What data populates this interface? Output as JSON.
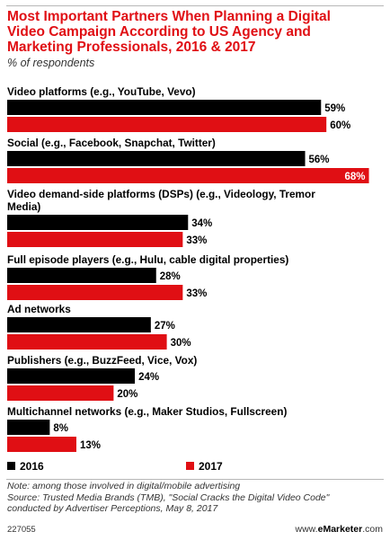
{
  "header": {
    "title": "Most Important Partners When Planning a Digital\nVideo Campaign According to US Agency and\nMarketing Professionals, 2016 & 2017",
    "subtitle": "% of respondents"
  },
  "chart_data": {
    "type": "bar",
    "orientation": "horizontal",
    "title": "Most Important Partners When Planning a Digital Video Campaign According to US Agency and Marketing Professionals, 2016 & 2017",
    "subtitle": "% of respondents",
    "unit": "%",
    "categories": [
      "Video platforms (e.g., YouTube, Vevo)",
      "Social (e.g., Facebook, Snapchat, Twitter)",
      "Video demand-side platforms (DSPs) (e.g., Videology, Tremor Media)",
      "Full episode players (e.g., Hulu, cable digital properties)",
      "Ad networks",
      "Publishers (e.g., BuzzFeed, Vice, Vox)",
      "Multichannel networks (e.g., Maker Studios, Fullscreen)"
    ],
    "series": [
      {
        "name": "2016",
        "color": "#000000",
        "values": [
          59,
          56,
          34,
          28,
          27,
          24,
          8
        ]
      },
      {
        "name": "2017",
        "color": "#e00f14",
        "values": [
          60,
          68,
          33,
          33,
          30,
          20,
          13
        ]
      }
    ],
    "value_labels": [
      [
        "59%",
        "56%",
        "34%",
        "28%",
        "27%",
        "24%",
        "8%"
      ],
      [
        "60%",
        "68%",
        "33%",
        "33%",
        "30%",
        "20%",
        "13%"
      ]
    ],
    "xlim": [
      0,
      68
    ],
    "grid": false,
    "legend_position": "bottom-left"
  },
  "footer": {
    "note": "Note: among those involved in digital/mobile advertising\nSource: Trusted Media Brands (TMB), \"Social Cracks the Digital Video Code\"\nconducted by Advertiser Perceptions, May 8, 2017",
    "chart_id": "227055",
    "site_prefix": "www.",
    "site_brand": "eMarketer",
    "site_suffix": ".com"
  }
}
